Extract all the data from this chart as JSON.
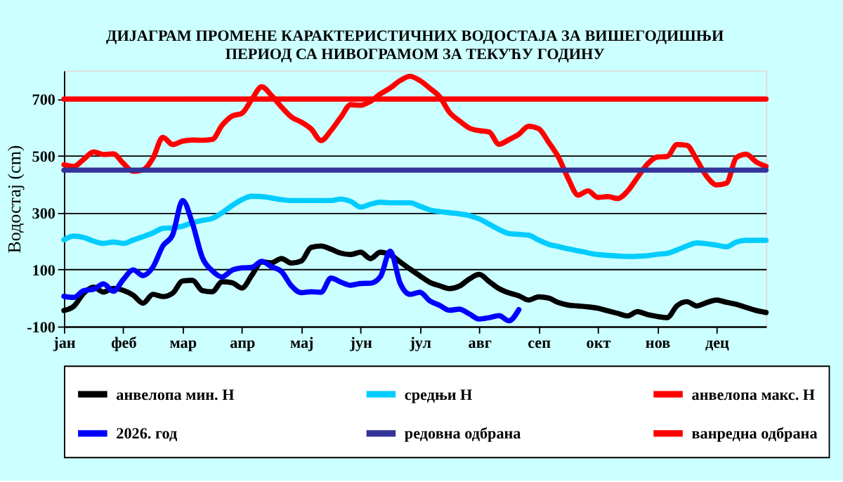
{
  "chart_data": {
    "type": "line",
    "title": "ДИЈАГРАМ ПРОМЕНЕ КАРАКТЕРИСТИЧНИХ ВОДОСТАЈА ЗА ВИШЕГОДИШЊИ\nПЕРИОД СА НИВОГРАМОМ ЗА ТЕКУЋУ ГОДИНУ",
    "ylabel": "Водостај (cm)",
    "categories": [
      "јан",
      null,
      null,
      null,
      null,
      null,
      "феб",
      null,
      null,
      null,
      null,
      null,
      "мар",
      null,
      null,
      null,
      null,
      null,
      "апр",
      null,
      null,
      null,
      null,
      null,
      "мај",
      null,
      null,
      null,
      null,
      null,
      "јун",
      null,
      null,
      null,
      null,
      null,
      "јул",
      null,
      null,
      null,
      null,
      null,
      "авг",
      null,
      null,
      null,
      null,
      null,
      "сеп",
      null,
      null,
      null,
      null,
      null,
      "окт",
      null,
      null,
      null,
      null,
      null,
      "нов",
      null,
      null,
      null,
      null,
      null,
      "дец",
      null,
      null,
      null,
      null,
      null
    ],
    "ylim": [
      -100,
      800
    ],
    "yticks": [
      -100,
      100,
      300,
      500,
      700
    ],
    "grid": "y",
    "legend": "bottom",
    "marker": "none",
    "line_style": "solid",
    "series": [
      {
        "name": "анвелопа мин. H",
        "color": "#000000",
        "values": [
          -44,
          -29,
          17,
          38,
          21,
          34,
          27,
          10,
          -18,
          13,
          5,
          17,
          60,
          62,
          26,
          22,
          57,
          54,
          35,
          80,
          127,
          124,
          139,
          123,
          130,
          178,
          183,
          172,
          158,
          153,
          161,
          139,
          161,
          152,
          127,
          102,
          78,
          55,
          43,
          33,
          42,
          67,
          83,
          58,
          33,
          18,
          8,
          -7,
          4,
          0,
          -16,
          -25,
          -28,
          -31,
          -36,
          -45,
          -54,
          -63,
          -48,
          -58,
          -65,
          -69,
          -27,
          -13,
          -28,
          -16,
          -7,
          -15,
          -22,
          -33,
          -44,
          -51
        ]
      },
      {
        "name": "средњи H",
        "color": "#00ccff",
        "values": [
          205,
          218,
          213,
          200,
          192,
          197,
          192,
          204,
          216,
          229,
          245,
          247,
          253,
          265,
          273,
          280,
          300,
          325,
          346,
          358,
          357,
          352,
          346,
          343,
          343,
          343,
          343,
          343,
          348,
          340,
          320,
          330,
          337,
          335,
          335,
          335,
          323,
          310,
          304,
          300,
          296,
          290,
          278,
          260,
          241,
          227,
          224,
          221,
          204,
          189,
          181,
          173,
          166,
          159,
          153,
          150,
          148,
          146,
          147,
          149,
          154,
          157,
          169,
          183,
          194,
          191,
          186,
          180,
          197,
          203,
          203,
          203
        ]
      },
      {
        "name": "анвелопа макс. H",
        "color": "#ff0000",
        "values": [
          469,
          463,
          488,
          514,
          505,
          507,
          474,
          446,
          451,
          492,
          565,
          540,
          552,
          556,
          555,
          558,
          608,
          640,
          650,
          699,
          743,
          712,
          672,
          637,
          619,
          595,
          554,
          589,
          636,
          680,
          678,
          692,
          718,
          739,
          765,
          780,
          765,
          738,
          708,
          653,
          623,
          598,
          589,
          584,
          541,
          557,
          576,
          604,
          596,
          549,
          496,
          420,
          362,
          377,
          354,
          357,
          350,
          376,
          424,
          471,
          496,
          498,
          540,
          537,
          486,
          428,
          398,
          404,
          494,
          506,
          479,
          463
        ]
      },
      {
        "name": "2026. год",
        "color": "#0000ff",
        "values": [
          6,
          2,
          26,
          31,
          50,
          24,
          65,
          99,
          79,
          109,
          183,
          223,
          343,
          262,
          142,
          96,
          74,
          98,
          106,
          108,
          129,
          110,
          93,
          43,
          19,
          22,
          20,
          70,
          56,
          45,
          51,
          52,
          75,
          165,
          52,
          13,
          20,
          -10,
          -26,
          -43,
          -39,
          -56,
          -74,
          -69,
          -62,
          -80,
          -41,
          null,
          null,
          null,
          null,
          null,
          null,
          null,
          null,
          null,
          null,
          null,
          null,
          null,
          null,
          null,
          null,
          null,
          null,
          null,
          null,
          null,
          null,
          null,
          null,
          null
        ]
      },
      {
        "name": "редовна одбрана",
        "color": "#333399",
        "values": [
          450,
          450,
          450,
          450,
          450,
          450,
          450,
          450,
          450,
          450,
          450,
          450,
          450,
          450,
          450,
          450,
          450,
          450,
          450,
          450,
          450,
          450,
          450,
          450,
          450,
          450,
          450,
          450,
          450,
          450,
          450,
          450,
          450,
          450,
          450,
          450,
          450,
          450,
          450,
          450,
          450,
          450,
          450,
          450,
          450,
          450,
          450,
          450,
          450,
          450,
          450,
          450,
          450,
          450,
          450,
          450,
          450,
          450,
          450,
          450,
          450,
          450,
          450,
          450,
          450,
          450,
          450,
          450,
          450,
          450,
          450,
          450
        ]
      },
      {
        "name": "ванредна одбрана",
        "color": "#ff0000",
        "values": [
          700,
          700,
          700,
          700,
          700,
          700,
          700,
          700,
          700,
          700,
          700,
          700,
          700,
          700,
          700,
          700,
          700,
          700,
          700,
          700,
          700,
          700,
          700,
          700,
          700,
          700,
          700,
          700,
          700,
          700,
          700,
          700,
          700,
          700,
          700,
          700,
          700,
          700,
          700,
          700,
          700,
          700,
          700,
          700,
          700,
          700,
          700,
          700,
          700,
          700,
          700,
          700,
          700,
          700,
          700,
          700,
          700,
          700,
          700,
          700,
          700,
          700,
          700,
          700,
          700,
          700,
          700,
          700,
          700,
          700,
          700,
          700
        ]
      }
    ]
  }
}
